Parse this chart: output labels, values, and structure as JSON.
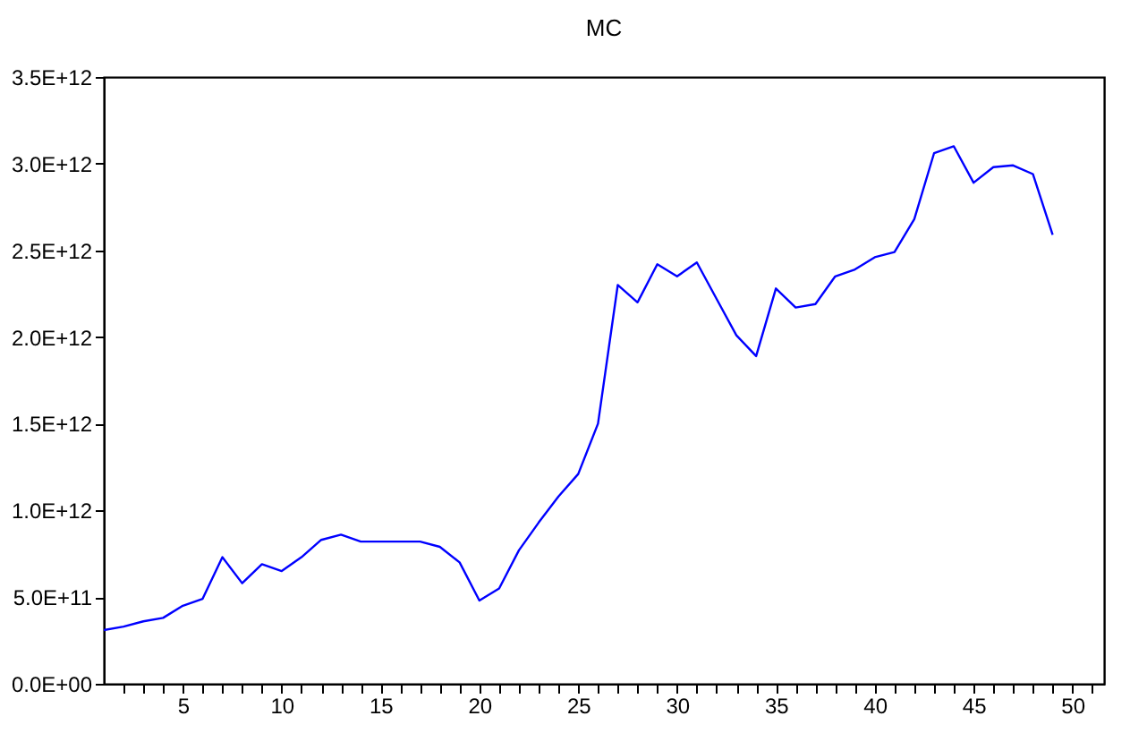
{
  "chart_data": {
    "type": "line",
    "title": "MC",
    "x": [
      1,
      2,
      3,
      4,
      5,
      6,
      7,
      8,
      9,
      10,
      11,
      12,
      13,
      14,
      15,
      16,
      17,
      18,
      19,
      20,
      21,
      22,
      23,
      24,
      25,
      26,
      27,
      28,
      29,
      30,
      31,
      32,
      33,
      34,
      35,
      36,
      37,
      38,
      39,
      40,
      41,
      42,
      43,
      44,
      45,
      46,
      47,
      48,
      49
    ],
    "series": [
      {
        "color": "#0000ff",
        "values": [
          310000000000.0,
          330000000000.0,
          360000000000.0,
          380000000000.0,
          450000000000.0,
          490000000000.0,
          730000000000.0,
          580000000000.0,
          690000000000.0,
          650000000000.0,
          730000000000.0,
          830000000000.0,
          860000000000.0,
          820000000000.0,
          820000000000.0,
          820000000000.0,
          820000000000.0,
          790000000000.0,
          700000000000.0,
          480000000000.0,
          550000000000.0,
          770000000000.0,
          930000000000.0,
          1080000000000.0,
          1210000000000.0,
          1500000000000.0,
          2300000000000.0,
          2200000000000.0,
          2420000000000.0,
          2350000000000.0,
          2430000000000.0,
          2220000000000.0,
          2010000000000.0,
          1890000000000.0,
          2280000000000.0,
          2170000000000.0,
          2190000000000.0,
          2350000000000.0,
          2390000000000.0,
          2460000000000.0,
          2490000000000.0,
          2680000000000.0,
          3060000000000.0,
          3100000000000.0,
          2890000000000.0,
          2980000000000.0,
          2990000000000.0,
          2940000000000.0,
          2590000000000.0
        ]
      }
    ],
    "xlim": [
      1,
      51.6
    ],
    "xticks": [
      {
        "value": 2,
        "label": null
      },
      {
        "value": 3,
        "label": null
      },
      {
        "value": 4,
        "label": null
      },
      5,
      {
        "value": 6,
        "label": null
      },
      {
        "value": 7,
        "label": null
      },
      {
        "value": 8,
        "label": null
      },
      {
        "value": 9,
        "label": null
      },
      10,
      {
        "value": 11,
        "label": null
      },
      {
        "value": 12,
        "label": null
      },
      {
        "value": 13,
        "label": null
      },
      {
        "value": 14,
        "label": null
      },
      15,
      {
        "value": 16,
        "label": null
      },
      {
        "value": 17,
        "label": null
      },
      {
        "value": 18,
        "label": null
      },
      {
        "value": 19,
        "label": null
      },
      20,
      {
        "value": 21,
        "label": null
      },
      {
        "value": 22,
        "label": null
      },
      {
        "value": 23,
        "label": null
      },
      {
        "value": 24,
        "label": null
      },
      25,
      {
        "value": 26,
        "label": null
      },
      {
        "value": 27,
        "label": null
      },
      {
        "value": 28,
        "label": null
      },
      {
        "value": 29,
        "label": null
      },
      30,
      {
        "value": 31,
        "label": null
      },
      {
        "value": 32,
        "label": null
      },
      {
        "value": 33,
        "label": null
      },
      {
        "value": 34,
        "label": null
      },
      35,
      {
        "value": 36,
        "label": null
      },
      {
        "value": 37,
        "label": null
      },
      {
        "value": 38,
        "label": null
      },
      {
        "value": 39,
        "label": null
      },
      40,
      {
        "value": 41,
        "label": null
      },
      {
        "value": 42,
        "label": null
      },
      {
        "value": 43,
        "label": null
      },
      {
        "value": 44,
        "label": null
      },
      45,
      {
        "value": 46,
        "label": null
      },
      {
        "value": 47,
        "label": null
      },
      {
        "value": 48,
        "label": null
      },
      {
        "value": 49,
        "label": null
      },
      50,
      {
        "value": 51,
        "label": null
      }
    ],
    "ylim": [
      0,
      3500000000000.0
    ],
    "yticks": [
      {
        "value": 0,
        "label": "0.0E+00"
      },
      {
        "value": 500000000000.0,
        "label": "5.0E+11"
      },
      {
        "value": 1000000000000.0,
        "label": "1.0E+12"
      },
      {
        "value": 1500000000000.0,
        "label": "1.5E+12"
      },
      {
        "value": 2000000000000.0,
        "label": "2.0E+12"
      },
      {
        "value": 2500000000000.0,
        "label": "2.5E+12"
      },
      {
        "value": 3000000000000.0,
        "label": "3.0E+12"
      },
      {
        "value": 3500000000000.0,
        "label": "3.5E+12"
      }
    ],
    "grid": false
  }
}
